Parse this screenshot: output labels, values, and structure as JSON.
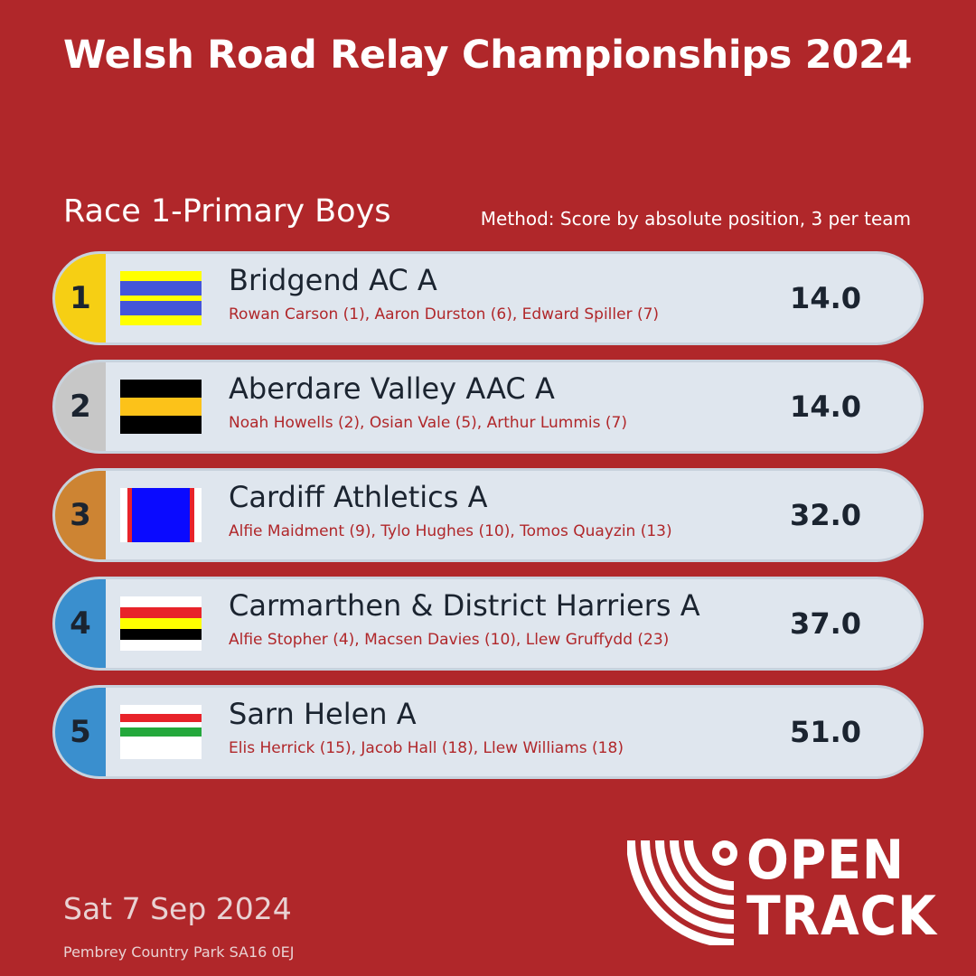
{
  "header": {
    "title": "Welsh Road Relay Championships 2024",
    "race_name": "Race 1-Primary Boys",
    "method": "Method: Score by absolute position, 3 per team"
  },
  "results": [
    {
      "position": "1",
      "team": "Bridgend AC A",
      "runners": "Rowan Carson (1), Aaron Durston (6), Edward Spiller (7)",
      "score": "14.0",
      "badge_color": "#f6cf14"
    },
    {
      "position": "2",
      "team": "Aberdare Valley AAC A",
      "runners": "Noah Howells (2), Osian Vale (5), Arthur Lummis (7)",
      "score": "14.0",
      "badge_color": "#c7c7c7"
    },
    {
      "position": "3",
      "team": "Cardiff Athletics A",
      "runners": "Alfie Maidment (9), Tylo Hughes (10), Tomos Quayzin (13)",
      "score": "32.0",
      "badge_color": "#cd8433"
    },
    {
      "position": "4",
      "team": "Carmarthen & District Harriers A",
      "runners": "Alfie Stopher (4), Macsen Davies (10), Llew Gruffydd (23)",
      "score": "37.0",
      "badge_color": "#3a8fce"
    },
    {
      "position": "5",
      "team": "Sarn Helen A",
      "runners": "Elis Herrick (15), Jacob Hall (18), Llew Williams (18)",
      "score": "51.0",
      "badge_color": "#3a8fce"
    }
  ],
  "footer": {
    "date": "Sat 7 Sep 2024",
    "venue": "Pembrey Country Park SA16 0EJ"
  },
  "logo": {
    "line1": "OPEN",
    "line2": "TRACK"
  },
  "colors": {
    "background": "#b0272a",
    "row_background": "#dfe6ee",
    "runner_text": "#b0272a"
  }
}
